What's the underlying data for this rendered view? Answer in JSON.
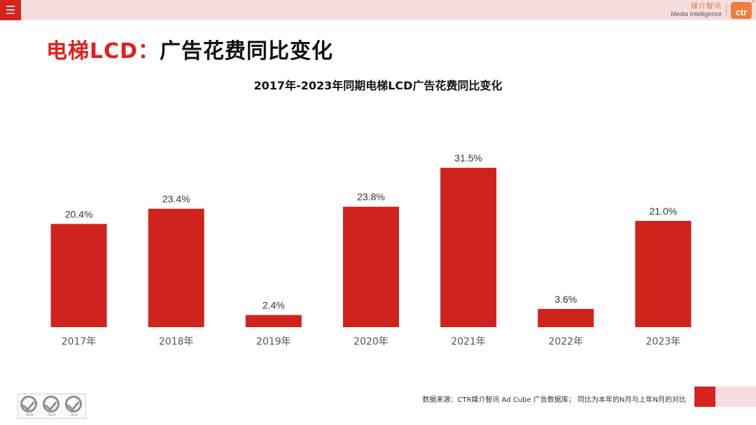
{
  "header": {
    "menu_icon": "hamburger-menu-icon",
    "brand_cn": "媒介智讯",
    "brand_en": "Media Intelligence",
    "brand_logo": "ctr",
    "brand_reg": "®"
  },
  "page": {
    "title_red": "电梯LCD：",
    "title_black": "广告花费同比变化"
  },
  "chart_data": {
    "type": "bar",
    "title": "2017年-2023年同期电梯LCD广告花费同比变化",
    "xlabel": "",
    "ylabel": "",
    "categories": [
      "2017年",
      "2018年",
      "2019年",
      "2020年",
      "2021年",
      "2022年",
      "2023年"
    ],
    "values": [
      20.4,
      23.4,
      2.4,
      23.8,
      31.5,
      3.6,
      21.0
    ],
    "labels": [
      "20.4%",
      "23.4%",
      "2.4%",
      "23.8%",
      "31.5%",
      "3.6%",
      "21.0%"
    ],
    "ylim": [
      0,
      31.5
    ],
    "grid": false,
    "bar_color": "#d0231d"
  },
  "footer": {
    "source": "数据来源：CTR媒介智讯 Ad Cube 广告数据库；  同比为本年的N月与上年N月的对比",
    "cert_label": "SGS",
    "cert_icon": "sgs-certification-icon"
  },
  "colors": {
    "accent_red": "#d6231e",
    "title_red": "#e0201b",
    "header_pink": "#f6dede",
    "brand_orange": "#ee7e3a"
  }
}
